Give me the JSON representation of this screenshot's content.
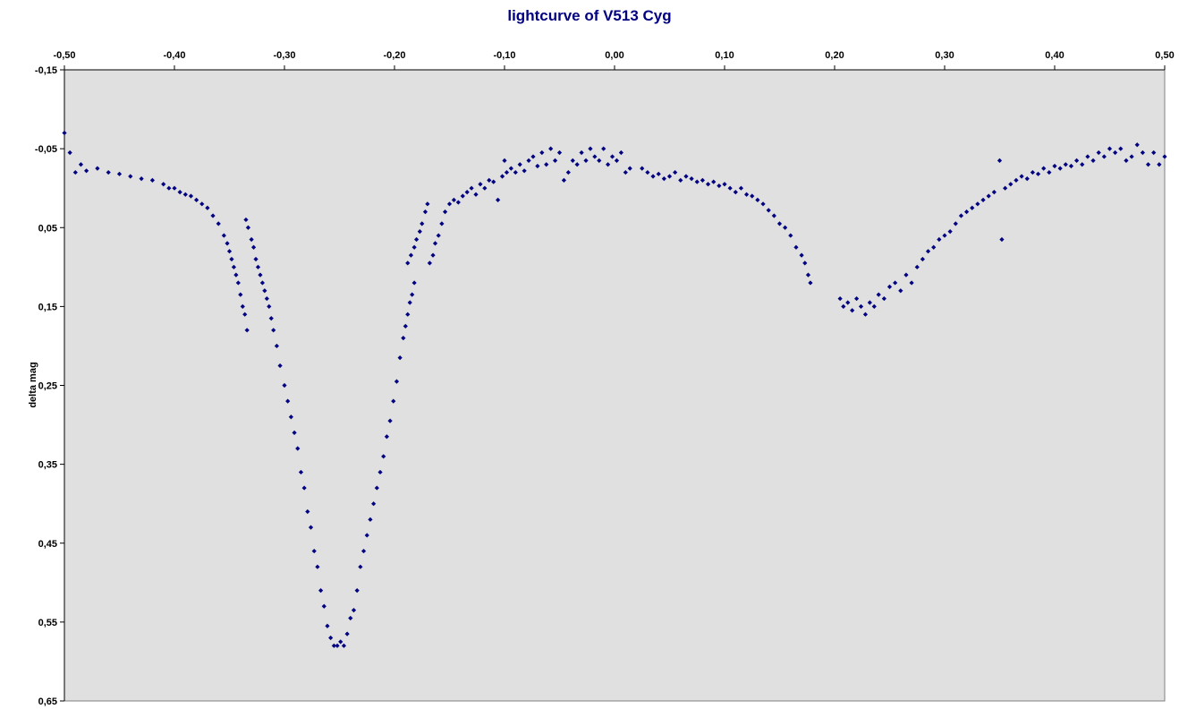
{
  "chart_data": {
    "type": "scatter",
    "title": "lightcurve of V513 Cyg",
    "xlabel": "",
    "ylabel": "delta mag",
    "xlim": [
      -0.5,
      0.5
    ],
    "ylim": [
      -0.15,
      0.65
    ],
    "y_inverted": true,
    "x_axis_position": "top",
    "grid": false,
    "legend": "none",
    "colors": {
      "marker": "#000080",
      "plot_background": "#e0e0e0",
      "title": "#000080"
    },
    "x_ticks": [
      -0.5,
      -0.4,
      -0.3,
      -0.2,
      -0.1,
      0.0,
      0.1,
      0.2,
      0.3,
      0.4,
      0.5
    ],
    "x_tick_labels": [
      "-0,50",
      "-0,40",
      "-0,30",
      "-0,20",
      "-0,10",
      "0,00",
      "0,10",
      "0,20",
      "0,30",
      "0,40",
      "0,50"
    ],
    "y_ticks": [
      -0.15,
      -0.05,
      0.05,
      0.15,
      0.25,
      0.35,
      0.45,
      0.55,
      0.65
    ],
    "y_tick_labels": [
      "-0,15",
      "-0,05",
      "0,05",
      "0,15",
      "0,25",
      "0,35",
      "0,45",
      "0,55",
      "0,65"
    ],
    "series": [
      {
        "points": [
          [
            -0.5,
            -0.07
          ],
          [
            -0.495,
            -0.045
          ],
          [
            -0.49,
            -0.02
          ],
          [
            -0.485,
            -0.03
          ],
          [
            -0.48,
            -0.022
          ],
          [
            -0.47,
            -0.025
          ],
          [
            -0.46,
            -0.02
          ],
          [
            -0.45,
            -0.018
          ],
          [
            -0.44,
            -0.015
          ],
          [
            -0.43,
            -0.012
          ],
          [
            -0.42,
            -0.01
          ],
          [
            -0.41,
            -0.005
          ],
          [
            -0.405,
            0.0
          ],
          [
            -0.4,
            0.0
          ],
          [
            -0.395,
            0.005
          ],
          [
            -0.39,
            0.008
          ],
          [
            -0.385,
            0.01
          ],
          [
            -0.38,
            0.015
          ],
          [
            -0.375,
            0.02
          ],
          [
            -0.37,
            0.025
          ],
          [
            -0.365,
            0.035
          ],
          [
            -0.36,
            0.045
          ],
          [
            -0.355,
            0.06
          ],
          [
            -0.352,
            0.07
          ],
          [
            -0.35,
            0.08
          ],
          [
            -0.348,
            0.09
          ],
          [
            -0.346,
            0.1
          ],
          [
            -0.344,
            0.11
          ],
          [
            -0.342,
            0.12
          ],
          [
            -0.34,
            0.135
          ],
          [
            -0.338,
            0.15
          ],
          [
            -0.336,
            0.16
          ],
          [
            -0.334,
            0.18
          ],
          [
            -0.335,
            0.04
          ],
          [
            -0.333,
            0.05
          ],
          [
            -0.33,
            0.065
          ],
          [
            -0.328,
            0.075
          ],
          [
            -0.326,
            0.09
          ],
          [
            -0.324,
            0.1
          ],
          [
            -0.322,
            0.11
          ],
          [
            -0.32,
            0.12
          ],
          [
            -0.318,
            0.13
          ],
          [
            -0.316,
            0.14
          ],
          [
            -0.314,
            0.15
          ],
          [
            -0.312,
            0.165
          ],
          [
            -0.31,
            0.18
          ],
          [
            -0.307,
            0.2
          ],
          [
            -0.304,
            0.225
          ],
          [
            -0.3,
            0.25
          ],
          [
            -0.297,
            0.27
          ],
          [
            -0.294,
            0.29
          ],
          [
            -0.291,
            0.31
          ],
          [
            -0.288,
            0.33
          ],
          [
            -0.285,
            0.36
          ],
          [
            -0.282,
            0.38
          ],
          [
            -0.279,
            0.41
          ],
          [
            -0.276,
            0.43
          ],
          [
            -0.273,
            0.46
          ],
          [
            -0.27,
            0.48
          ],
          [
            -0.267,
            0.51
          ],
          [
            -0.264,
            0.53
          ],
          [
            -0.261,
            0.555
          ],
          [
            -0.258,
            0.57
          ],
          [
            -0.255,
            0.58
          ],
          [
            -0.252,
            0.58
          ],
          [
            -0.249,
            0.575
          ],
          [
            -0.246,
            0.58
          ],
          [
            -0.243,
            0.565
          ],
          [
            -0.24,
            0.545
          ],
          [
            -0.237,
            0.535
          ],
          [
            -0.234,
            0.51
          ],
          [
            -0.231,
            0.48
          ],
          [
            -0.228,
            0.46
          ],
          [
            -0.225,
            0.44
          ],
          [
            -0.222,
            0.42
          ],
          [
            -0.219,
            0.4
          ],
          [
            -0.216,
            0.38
          ],
          [
            -0.213,
            0.36
          ],
          [
            -0.21,
            0.34
          ],
          [
            -0.207,
            0.315
          ],
          [
            -0.204,
            0.295
          ],
          [
            -0.201,
            0.27
          ],
          [
            -0.198,
            0.245
          ],
          [
            -0.195,
            0.215
          ],
          [
            -0.192,
            0.19
          ],
          [
            -0.19,
            0.175
          ],
          [
            -0.188,
            0.16
          ],
          [
            -0.186,
            0.145
          ],
          [
            -0.184,
            0.135
          ],
          [
            -0.182,
            0.12
          ],
          [
            -0.188,
            0.095
          ],
          [
            -0.185,
            0.085
          ],
          [
            -0.182,
            0.075
          ],
          [
            -0.18,
            0.065
          ],
          [
            -0.177,
            0.055
          ],
          [
            -0.175,
            0.045
          ],
          [
            -0.172,
            0.03
          ],
          [
            -0.17,
            0.02
          ],
          [
            -0.168,
            0.095
          ],
          [
            -0.165,
            0.085
          ],
          [
            -0.163,
            0.07
          ],
          [
            -0.16,
            0.06
          ],
          [
            -0.157,
            0.045
          ],
          [
            -0.154,
            0.03
          ],
          [
            -0.15,
            0.02
          ],
          [
            -0.146,
            0.015
          ],
          [
            -0.142,
            0.018
          ],
          [
            -0.138,
            0.01
          ],
          [
            -0.134,
            0.005
          ],
          [
            -0.13,
            0.0
          ],
          [
            -0.126,
            0.008
          ],
          [
            -0.122,
            -0.005
          ],
          [
            -0.118,
            0.0
          ],
          [
            -0.114,
            -0.01
          ],
          [
            -0.11,
            -0.008
          ],
          [
            -0.106,
            0.015
          ],
          [
            -0.102,
            -0.015
          ],
          [
            -0.1,
            -0.035
          ],
          [
            -0.098,
            -0.02
          ],
          [
            -0.094,
            -0.025
          ],
          [
            -0.09,
            -0.02
          ],
          [
            -0.086,
            -0.03
          ],
          [
            -0.082,
            -0.022
          ],
          [
            -0.078,
            -0.035
          ],
          [
            -0.074,
            -0.04
          ],
          [
            -0.07,
            -0.028
          ],
          [
            -0.066,
            -0.045
          ],
          [
            -0.062,
            -0.03
          ],
          [
            -0.058,
            -0.05
          ],
          [
            -0.054,
            -0.035
          ],
          [
            -0.05,
            -0.045
          ],
          [
            -0.046,
            -0.01
          ],
          [
            -0.042,
            -0.02
          ],
          [
            -0.038,
            -0.035
          ],
          [
            -0.034,
            -0.03
          ],
          [
            -0.03,
            -0.045
          ],
          [
            -0.026,
            -0.035
          ],
          [
            -0.022,
            -0.05
          ],
          [
            -0.018,
            -0.04
          ],
          [
            -0.014,
            -0.035
          ],
          [
            -0.01,
            -0.05
          ],
          [
            -0.006,
            -0.03
          ],
          [
            -0.002,
            -0.04
          ],
          [
            0.002,
            -0.035
          ],
          [
            0.006,
            -0.045
          ],
          [
            0.01,
            -0.02
          ],
          [
            0.014,
            -0.025
          ],
          [
            0.025,
            -0.025
          ],
          [
            0.03,
            -0.02
          ],
          [
            0.035,
            -0.015
          ],
          [
            0.04,
            -0.018
          ],
          [
            0.045,
            -0.012
          ],
          [
            0.05,
            -0.015
          ],
          [
            0.055,
            -0.02
          ],
          [
            0.06,
            -0.01
          ],
          [
            0.065,
            -0.015
          ],
          [
            0.07,
            -0.012
          ],
          [
            0.075,
            -0.008
          ],
          [
            0.08,
            -0.01
          ],
          [
            0.085,
            -0.005
          ],
          [
            0.09,
            -0.008
          ],
          [
            0.095,
            -0.003
          ],
          [
            0.1,
            -0.005
          ],
          [
            0.105,
            0.0
          ],
          [
            0.11,
            0.005
          ],
          [
            0.115,
            0.0
          ],
          [
            0.12,
            0.008
          ],
          [
            0.125,
            0.01
          ],
          [
            0.13,
            0.015
          ],
          [
            0.135,
            0.02
          ],
          [
            0.14,
            0.028
          ],
          [
            0.145,
            0.035
          ],
          [
            0.15,
            0.045
          ],
          [
            0.155,
            0.05
          ],
          [
            0.16,
            0.06
          ],
          [
            0.165,
            0.075
          ],
          [
            0.17,
            0.085
          ],
          [
            0.173,
            0.095
          ],
          [
            0.176,
            0.11
          ],
          [
            0.178,
            0.12
          ],
          [
            0.205,
            0.14
          ],
          [
            0.208,
            0.15
          ],
          [
            0.212,
            0.145
          ],
          [
            0.216,
            0.155
          ],
          [
            0.22,
            0.14
          ],
          [
            0.224,
            0.15
          ],
          [
            0.228,
            0.16
          ],
          [
            0.232,
            0.145
          ],
          [
            0.236,
            0.15
          ],
          [
            0.24,
            0.135
          ],
          [
            0.245,
            0.14
          ],
          [
            0.25,
            0.125
          ],
          [
            0.255,
            0.12
          ],
          [
            0.26,
            0.13
          ],
          [
            0.265,
            0.11
          ],
          [
            0.27,
            0.12
          ],
          [
            0.275,
            0.1
          ],
          [
            0.28,
            0.09
          ],
          [
            0.285,
            0.08
          ],
          [
            0.29,
            0.075
          ],
          [
            0.295,
            0.065
          ],
          [
            0.3,
            0.06
          ],
          [
            0.305,
            0.055
          ],
          [
            0.31,
            0.045
          ],
          [
            0.315,
            0.035
          ],
          [
            0.32,
            0.03
          ],
          [
            0.325,
            0.025
          ],
          [
            0.33,
            0.02
          ],
          [
            0.335,
            0.015
          ],
          [
            0.34,
            0.01
          ],
          [
            0.345,
            0.005
          ],
          [
            0.35,
            -0.035
          ],
          [
            0.352,
            0.065
          ],
          [
            0.355,
            0.0
          ],
          [
            0.36,
            -0.005
          ],
          [
            0.365,
            -0.01
          ],
          [
            0.37,
            -0.015
          ],
          [
            0.375,
            -0.012
          ],
          [
            0.38,
            -0.02
          ],
          [
            0.385,
            -0.018
          ],
          [
            0.39,
            -0.025
          ],
          [
            0.395,
            -0.02
          ],
          [
            0.4,
            -0.028
          ],
          [
            0.405,
            -0.025
          ],
          [
            0.41,
            -0.03
          ],
          [
            0.415,
            -0.028
          ],
          [
            0.42,
            -0.035
          ],
          [
            0.425,
            -0.03
          ],
          [
            0.43,
            -0.04
          ],
          [
            0.435,
            -0.035
          ],
          [
            0.44,
            -0.045
          ],
          [
            0.445,
            -0.04
          ],
          [
            0.45,
            -0.05
          ],
          [
            0.455,
            -0.045
          ],
          [
            0.46,
            -0.05
          ],
          [
            0.465,
            -0.035
          ],
          [
            0.47,
            -0.04
          ],
          [
            0.475,
            -0.055
          ],
          [
            0.48,
            -0.045
          ],
          [
            0.485,
            -0.03
          ],
          [
            0.49,
            -0.045
          ],
          [
            0.495,
            -0.03
          ],
          [
            0.5,
            -0.04
          ]
        ]
      }
    ]
  }
}
